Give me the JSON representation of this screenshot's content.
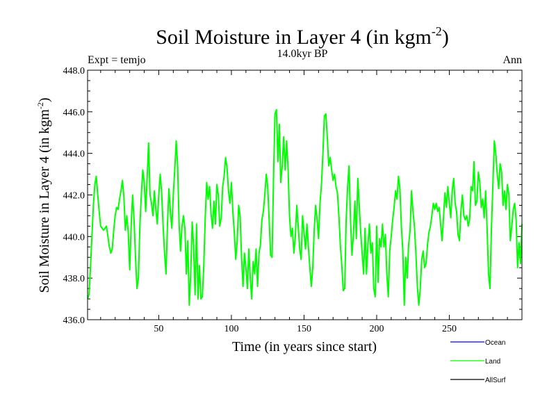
{
  "chart_data": {
    "type": "line",
    "title": "Soil Moisture in Layer 4 (in kgm",
    "title_sup": "-2",
    "title_end": ")",
    "subtitle": "14.0kyr BP",
    "top_left": "Expt = temjo",
    "top_right": "Ann",
    "xlabel": "Time (in years since start)",
    "ylabel": "Soil Moisture in Layer 4 (in kgm",
    "ylabel_sup": "-2",
    "ylabel_end": ")",
    "xlim": [
      1,
      300
    ],
    "ylim": [
      436.0,
      448.0
    ],
    "xticks": [
      50,
      100,
      150,
      200,
      250
    ],
    "xtick_labels": [
      "50",
      "100",
      "150",
      "200",
      "250"
    ],
    "yticks": [
      436,
      438,
      440,
      442,
      444,
      446,
      448
    ],
    "ytick_labels": [
      "436.0",
      "438.0",
      "440.0",
      "442.0",
      "444.0",
      "446.0",
      "448.0"
    ],
    "legend": [
      {
        "name": "Ocean",
        "color": "#0000ff"
      },
      {
        "name": "Land",
        "color": "#00ff00"
      },
      {
        "name": "AllSurf",
        "color": "#000000"
      }
    ],
    "series": [
      {
        "name": "Land",
        "color": "#00ff00",
        "x_start": 1,
        "values": [
          437.0,
          437.2,
          438.5,
          440.0,
          441.5,
          442.5,
          442.9,
          442.0,
          441.2,
          440.5,
          440.4,
          440.3,
          440.4,
          440.5,
          440.0,
          439.5,
          439.2,
          439.4,
          440.3,
          441.0,
          441.4,
          441.3,
          441.8,
          442.2,
          442.7,
          441.9,
          440.3,
          441.0,
          440.2,
          438.4,
          440.5,
          442.0,
          440.8,
          439.0,
          437.5,
          438.0,
          440.5,
          442.0,
          443.2,
          442.6,
          441.2,
          442.8,
          444.5,
          442.0,
          441.6,
          441.0,
          442.2,
          441.3,
          440.6,
          442.0,
          443.0,
          442.1,
          440.5,
          439.2,
          438.2,
          440.6,
          442.3,
          441.2,
          440.4,
          442.0,
          443.2,
          444.6,
          443.4,
          440.6,
          439.3,
          440.5,
          441.0,
          440.4,
          438.2,
          439.8,
          436.7,
          438.2,
          440.7,
          439.5,
          437.2,
          440.6,
          437.0,
          438.6,
          437.0,
          437.1,
          438.6,
          440.9,
          442.6,
          441.8,
          442.4,
          441.1,
          440.4,
          441.7,
          440.6,
          442.5,
          442.0,
          440.5,
          440.9,
          442.4,
          442.9,
          443.8,
          443.3,
          442.2,
          441.6,
          442.6,
          441.2,
          440.2,
          438.9,
          439.8,
          441.5,
          441.0,
          439.0,
          437.6,
          439.2,
          438.5,
          437.5,
          439.4,
          438.0,
          437.0,
          438.8,
          438.2,
          439.4,
          437.6,
          439.2,
          439.6,
          440.8,
          441.2,
          442.0,
          443.0,
          442.4,
          440.8,
          439.1,
          439.0,
          442.8,
          445.9,
          446.1,
          443.6,
          445.4,
          442.6,
          443.4,
          444.8,
          443.2,
          444.6,
          443.3,
          441.0,
          440.0,
          440.4,
          439.2,
          440.0,
          441.5,
          440.5,
          439.4,
          438.9,
          441.0,
          440.2,
          439.4,
          440.6,
          439.5,
          438.5,
          437.6,
          438.5,
          440.3,
          441.5,
          440.8,
          439.9,
          441.6,
          442.5,
          444.0,
          445.8,
          445.9,
          444.8,
          443.4,
          443.8,
          443.2,
          442.7,
          443.0,
          442.4,
          442.1,
          441.0,
          439.6,
          438.6,
          437.4,
          437.5,
          440.8,
          442.4,
          443.4,
          440.8,
          439.1,
          440.1,
          441.7,
          439.9,
          442.8,
          441.5,
          440.2,
          439.2,
          438.2,
          440.4,
          438.2,
          439.6,
          440.6,
          439.2,
          439.7,
          437.5,
          437.1,
          440.5,
          437.8,
          439.9,
          439.5,
          440.6,
          439.5,
          440.1,
          438.2,
          437.1,
          439.3,
          440.0,
          440.8,
          441.4,
          442.2,
          441.8,
          442.9,
          442.3,
          440.5,
          439.3,
          436.7,
          439.0,
          438.0,
          439.6,
          440.3,
          442.2,
          441.2,
          440.5,
          439.2,
          437.6,
          436.7,
          437.5,
          438.9,
          439.3,
          438.5,
          438.7,
          439.6,
          440.2,
          440.5,
          441.0,
          441.6,
          441.3,
          441.6,
          441.2,
          441.4,
          440.6,
          439.8,
          440.9,
          442.1,
          441.4,
          442.4,
          441.6,
          440.9,
          442.2,
          442.8,
          441.6,
          441.2,
          440.1,
          439.8,
          441.2,
          442.0,
          441.0,
          440.8,
          441.0,
          440.5,
          440.8,
          442.4,
          442.2,
          443.6,
          441.5,
          441.7,
          443.1,
          442.6,
          441.4,
          441.8,
          440.9,
          442.2,
          440.4,
          438.2,
          437.5,
          440.4,
          442.5,
          444.6,
          444.0,
          443.0,
          442.3,
          443.5,
          443.1,
          441.5,
          442.2,
          441.3,
          442.5,
          442.0,
          439.8,
          440.5,
          441.3,
          441.6,
          440.8,
          438.5,
          439.7,
          438.7,
          440.6
        ]
      }
    ]
  }
}
